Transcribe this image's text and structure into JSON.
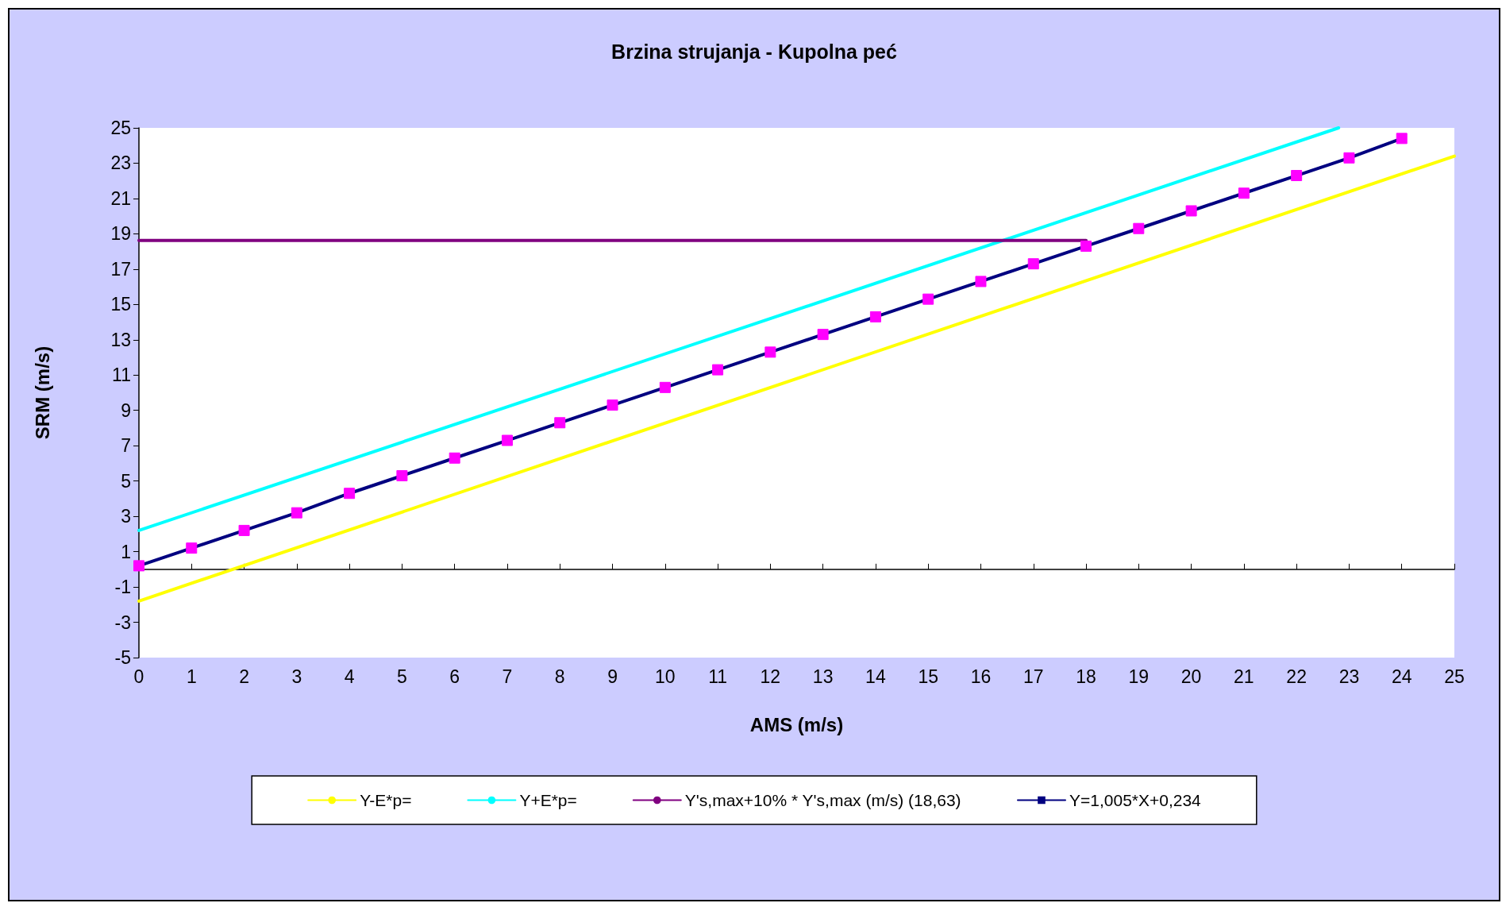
{
  "chart_data": {
    "type": "line",
    "title": "Brzina strujanja - Kupolna peć",
    "xlabel": "AMS (m/s)",
    "ylabel": "SRM (m/s)",
    "xlim": [
      0,
      25
    ],
    "xticks": [
      0,
      1,
      2,
      3,
      4,
      5,
      6,
      7,
      8,
      9,
      10,
      11,
      12,
      13,
      14,
      15,
      16,
      17,
      18,
      19,
      20,
      21,
      22,
      23,
      24,
      25
    ],
    "ylim": [
      -5,
      25
    ],
    "yticks": [
      -5,
      -3,
      -1,
      1,
      3,
      5,
      7,
      9,
      11,
      13,
      15,
      17,
      19,
      21,
      23,
      25
    ],
    "grid": false,
    "legend": "bottom",
    "line_style": "solid",
    "series": [
      {
        "name": "Y-E*p=",
        "color": "#ffff00",
        "marker": "none",
        "x": [
          0,
          25
        ],
        "values": [
          -1.8,
          23.4
        ]
      },
      {
        "name": "Y+E*p=",
        "color": "#00ffff",
        "marker": "none",
        "x": [
          0,
          22.8
        ],
        "values": [
          2.2,
          25
        ]
      },
      {
        "name": "Y's,max+10% * Y's,max (m/s) (18,63)",
        "color": "#800080",
        "marker": "none",
        "x": [
          0,
          18
        ],
        "values": [
          18.63,
          18.63
        ]
      },
      {
        "name": "Y=1,005*X+0,234",
        "color": "#000080",
        "marker": "square",
        "colors": [
          "#ff00ff",
          "#ff00ff",
          "#ff00ff",
          "#ff00ff",
          "#ff00ff",
          "#ff00ff",
          "#ff00ff",
          "#ff00ff",
          "#ff00ff",
          "#ff00ff",
          "#ff00ff",
          "#ff00ff",
          "#ff00ff",
          "#ff00ff",
          "#ff00ff",
          "#ff00ff",
          "#ff00ff",
          "#ff00ff",
          "#ff00ff",
          "#ff00ff",
          "#ff00ff",
          "#ff00ff",
          "#ff00ff",
          "#ff00ff",
          "#ff00ff"
        ],
        "x": [
          0,
          1,
          2,
          3,
          4,
          5,
          6,
          7,
          8,
          9,
          10,
          11,
          12,
          13,
          14,
          15,
          16,
          17,
          18,
          19,
          20,
          21,
          22,
          23,
          24
        ],
        "values": [
          0.2,
          1.2,
          2.2,
          3.2,
          4.3,
          5.3,
          6.3,
          7.3,
          8.3,
          9.3,
          10.3,
          11.3,
          12.3,
          13.3,
          14.3,
          15.3,
          16.3,
          17.3,
          18.3,
          19.3,
          20.3,
          21.3,
          22.3,
          23.3,
          24.4
        ]
      }
    ]
  }
}
